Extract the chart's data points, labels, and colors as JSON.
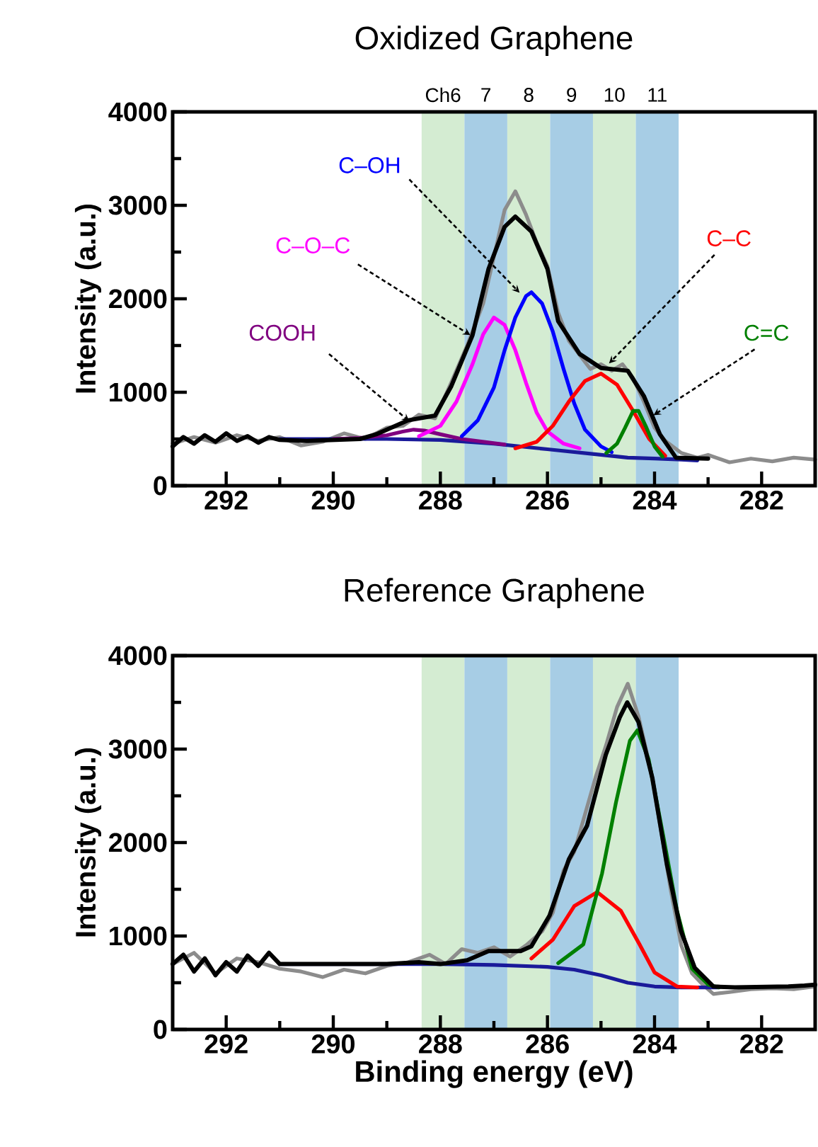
{
  "chart_data": [
    {
      "type": "line",
      "title": "Oxidized Graphene",
      "ylabel": "Intensity (a.u.)",
      "xlim": [
        293,
        281
      ],
      "ylim": [
        0,
        4000
      ],
      "xticks": [
        292,
        290,
        288,
        286,
        284,
        282,
        {
          "value": 291,
          "label": null
        },
        {
          "value": 289,
          "label": null
        },
        {
          "value": 287,
          "label": null
        },
        {
          "value": 285,
          "label": null
        },
        {
          "value": 283,
          "label": null
        }
      ],
      "yticks": [
        0,
        1000,
        2000,
        3000,
        4000,
        {
          "value": 500,
          "label": null
        },
        {
          "value": 1500,
          "label": null
        },
        {
          "value": 2500,
          "label": null
        },
        {
          "value": 3500,
          "label": null
        }
      ],
      "bands": [
        {
          "axis": "x",
          "from": 288.35,
          "to": 287.55,
          "label": "Ch6",
          "color": "#d4ecd2"
        },
        {
          "axis": "x",
          "from": 287.55,
          "to": 286.75,
          "label": "7",
          "color": "#a7cde5"
        },
        {
          "axis": "x",
          "from": 286.75,
          "to": 285.95,
          "label": "8",
          "color": "#d4ecd2"
        },
        {
          "axis": "x",
          "from": 285.95,
          "to": 285.15,
          "label": "9",
          "color": "#a7cde5"
        },
        {
          "axis": "x",
          "from": 285.15,
          "to": 284.35,
          "label": "10",
          "color": "#d4ecd2"
        },
        {
          "axis": "x",
          "from": 284.35,
          "to": 283.55,
          "label": "11",
          "color": "#a7cde5"
        }
      ],
      "series": [
        {
          "color": "#8c8c8c",
          "x": [
            293,
            292.6,
            292.2,
            291.8,
            291.4,
            291,
            290.6,
            290.2,
            289.8,
            289.4,
            289,
            288.7,
            288.4,
            288.1,
            287.8,
            287.5,
            287.2,
            287,
            286.8,
            286.6,
            286.4,
            286.2,
            286,
            285.8,
            285.6,
            285.4,
            285.2,
            285,
            284.8,
            284.6,
            284.4,
            284.2,
            284,
            283.8,
            283.5,
            283.2,
            283,
            282.6,
            282.2,
            281.8,
            281.4,
            281
          ],
          "values": [
            450,
            520,
            460,
            540,
            480,
            520,
            430,
            470,
            560,
            500,
            620,
            640,
            760,
            720,
            1100,
            1500,
            1950,
            2450,
            2950,
            3150,
            2900,
            2600,
            2350,
            1850,
            1550,
            1400,
            1250,
            1300,
            1230,
            1300,
            1150,
            900,
            620,
            480,
            350,
            300,
            330,
            250,
            290,
            260,
            300,
            280
          ]
        },
        {
          "color": "#1a1a9a",
          "x": [
            291,
            290,
            289,
            288,
            287,
            286,
            285,
            284.5,
            284,
            283.5,
            283.2
          ],
          "values": [
            500,
            500,
            500,
            490,
            450,
            390,
            330,
            300,
            290,
            280,
            270
          ]
        },
        {
          "name": "COOH",
          "color": "#800080",
          "x": [
            290,
            289.5,
            289,
            288.7,
            288.5,
            288.3,
            288,
            287.6,
            287.2,
            286.8
          ],
          "values": [
            500,
            510,
            540,
            580,
            600,
            590,
            550,
            500,
            470,
            440
          ]
        },
        {
          "name": "C–O–C",
          "color": "#ff00ff",
          "x": [
            288.4,
            288,
            287.7,
            287.4,
            287.2,
            287,
            286.8,
            286.6,
            286.4,
            286.2,
            286,
            285.7,
            285.4
          ],
          "values": [
            530,
            640,
            900,
            1300,
            1620,
            1800,
            1720,
            1450,
            1100,
            780,
            580,
            450,
            400
          ]
        },
        {
          "name": "C–OH",
          "color": "#0000ff",
          "x": [
            287.6,
            287.3,
            287,
            286.8,
            286.6,
            286.4,
            286.3,
            286.1,
            285.9,
            285.7,
            285.5,
            285.3,
            285,
            284.8
          ],
          "values": [
            530,
            700,
            1050,
            1450,
            1800,
            2030,
            2070,
            1950,
            1650,
            1250,
            880,
            600,
            420,
            360
          ]
        },
        {
          "name": "C–C",
          "color": "#ff0000",
          "x": [
            286.6,
            286.2,
            285.9,
            285.6,
            285.3,
            285,
            284.7,
            284.4,
            284.1,
            283.8
          ],
          "values": [
            400,
            470,
            640,
            900,
            1120,
            1200,
            1080,
            800,
            500,
            320
          ]
        },
        {
          "name": "C=C",
          "color": "#008000",
          "x": [
            284.9,
            284.7,
            284.55,
            284.4,
            284.3,
            284.15,
            284,
            283.85
          ],
          "values": [
            350,
            450,
            620,
            800,
            800,
            620,
            420,
            310
          ]
        },
        {
          "color": "#000000",
          "x": [
            293,
            292.8,
            292.6,
            292.4,
            292.2,
            292,
            291.8,
            291.6,
            291.4,
            291.2,
            291,
            290.5,
            290,
            289.5,
            289.2,
            288.6,
            288.1,
            287.8,
            287.4,
            287.1,
            286.8,
            286.6,
            286.3,
            286,
            285.8,
            285.4,
            285,
            284.5,
            284.2,
            283.9,
            283.6,
            283
          ],
          "values": [
            420,
            520,
            450,
            540,
            470,
            560,
            480,
            530,
            460,
            520,
            490,
            480,
            490,
            500,
            550,
            700,
            750,
            1060,
            1610,
            2320,
            2770,
            2880,
            2720,
            2320,
            1760,
            1410,
            1260,
            1230,
            960,
            550,
            300,
            290
          ]
        }
      ]
    },
    {
      "type": "line",
      "title": "Reference Graphene",
      "xlabel": "Binding energy (eV)",
      "ylabel": "Intensity (a.u.)",
      "xlim": [
        293,
        281
      ],
      "ylim": [
        0,
        4000
      ],
      "xticks": [
        292,
        290,
        288,
        286,
        284,
        282,
        {
          "value": 291,
          "label": null
        },
        {
          "value": 289,
          "label": null
        },
        {
          "value": 287,
          "label": null
        },
        {
          "value": 285,
          "label": null
        },
        {
          "value": 283,
          "label": null
        }
      ],
      "yticks": [
        0,
        1000,
        2000,
        3000,
        4000,
        {
          "value": 500,
          "label": null
        },
        {
          "value": 1500,
          "label": null
        },
        {
          "value": 2500,
          "label": null
        },
        {
          "value": 3500,
          "label": null
        }
      ],
      "bands": [
        {
          "axis": "x",
          "from": 288.35,
          "to": 287.55,
          "color": "#d4ecd2"
        },
        {
          "axis": "x",
          "from": 287.55,
          "to": 286.75,
          "color": "#a7cde5"
        },
        {
          "axis": "x",
          "from": 286.75,
          "to": 285.95,
          "color": "#d4ecd2"
        },
        {
          "axis": "x",
          "from": 285.95,
          "to": 285.15,
          "color": "#a7cde5"
        },
        {
          "axis": "x",
          "from": 285.15,
          "to": 284.35,
          "color": "#d4ecd2"
        },
        {
          "axis": "x",
          "from": 284.35,
          "to": 283.55,
          "color": "#a7cde5"
        }
      ],
      "series": [
        {
          "color": "#8c8c8c",
          "x": [
            293,
            292.6,
            292.2,
            291.8,
            291.4,
            291,
            290.6,
            290.2,
            289.8,
            289.4,
            289,
            288.6,
            288.2,
            287.9,
            287.6,
            287.3,
            287,
            286.7,
            286.4,
            286.1,
            285.9,
            285.7,
            285.5,
            285.3,
            285.1,
            284.9,
            284.7,
            284.5,
            284.3,
            284.1,
            283.9,
            283.7,
            283.5,
            283.3,
            283.1,
            282.9,
            282.6,
            282.2,
            281.8,
            281.4,
            281
          ],
          "values": [
            700,
            820,
            600,
            760,
            720,
            650,
            620,
            560,
            640,
            600,
            680,
            720,
            800,
            700,
            860,
            820,
            880,
            780,
            900,
            1050,
            1250,
            1700,
            1900,
            2300,
            2700,
            3050,
            3450,
            3700,
            3350,
            2850,
            2200,
            1500,
            900,
            600,
            480,
            380,
            400,
            430,
            440,
            430,
            460
          ]
        },
        {
          "color": "#1a1a9a",
          "x": [
            291,
            289,
            288,
            287,
            286,
            285.5,
            285,
            284.5,
            284,
            283.5,
            283,
            282.8
          ],
          "values": [
            700,
            700,
            700,
            690,
            670,
            640,
            580,
            500,
            460,
            450,
            450,
            450
          ]
        },
        {
          "color": "#ff0000",
          "x": [
            286.3,
            285.9,
            285.5,
            285.07,
            284.63,
            284.28,
            284,
            283.58,
            283.2
          ],
          "values": [
            760,
            960,
            1320,
            1470,
            1270,
            910,
            610,
            460,
            450
          ]
        },
        {
          "color": "#008000",
          "x": [
            285.8,
            285.33,
            284.98,
            284.72,
            284.46,
            284.32,
            284.11,
            283.84,
            283.58,
            283.3,
            283,
            282.8
          ],
          "values": [
            710,
            910,
            1670,
            2430,
            3090,
            3200,
            2890,
            2080,
            1270,
            650,
            480,
            450
          ]
        },
        {
          "color": "#000000",
          "x": [
            293,
            292.8,
            292.6,
            292.4,
            292.2,
            292,
            291.8,
            291.6,
            291.4,
            291.2,
            291,
            290,
            289,
            288.4,
            288,
            287.5,
            287.1,
            286.5,
            286.3,
            285.96,
            285.6,
            285.26,
            284.91,
            284.65,
            284.51,
            284.3,
            284.04,
            283.77,
            283.51,
            283.25,
            282.9,
            282.5,
            281.5,
            281.2,
            281
          ],
          "values": [
            700,
            800,
            620,
            760,
            580,
            720,
            620,
            790,
            680,
            820,
            700,
            700,
            700,
            720,
            700,
            740,
            840,
            840,
            890,
            1220,
            1820,
            2180,
            2940,
            3340,
            3500,
            3290,
            2690,
            1770,
            1060,
            660,
            460,
            450,
            460,
            470,
            480
          ]
        }
      ]
    }
  ]
}
